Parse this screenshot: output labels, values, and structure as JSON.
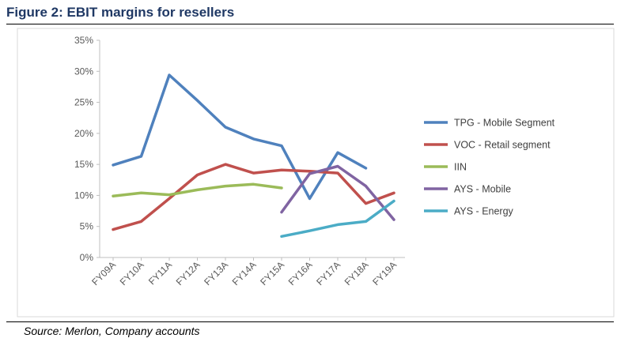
{
  "header": {
    "title": "Figure 2: EBIT margins for resellers"
  },
  "footer": {
    "source": "Source: Merlon, Company accounts"
  },
  "chart_data": {
    "type": "line",
    "title": "",
    "xlabel": "",
    "ylabel": "",
    "categories": [
      "FY09A",
      "FY10A",
      "FY11A",
      "FY12A",
      "FY13A",
      "FY14A",
      "FY15A",
      "FY16A",
      "FY17A",
      "FY18A",
      "FY19A"
    ],
    "ylim": [
      0,
      35
    ],
    "yticks": [
      "0%",
      "5%",
      "10%",
      "15%",
      "20%",
      "25%",
      "30%",
      "35%"
    ],
    "grid": false,
    "legend_position": "right",
    "series": [
      {
        "name": "TPG - Mobile Segment",
        "color": "#4f81bd",
        "values": [
          14.9,
          16.3,
          29.4,
          25.3,
          21.0,
          19.1,
          18.0,
          9.5,
          16.9,
          14.4,
          null
        ]
      },
      {
        "name": "VOC - Retail segment",
        "color": "#c0504d",
        "values": [
          4.5,
          5.8,
          9.5,
          13.3,
          15.0,
          13.6,
          14.1,
          13.9,
          13.6,
          8.7,
          10.4
        ]
      },
      {
        "name": "IIN",
        "color": "#9bbb59",
        "values": [
          9.9,
          10.4,
          10.1,
          10.9,
          11.5,
          11.8,
          11.2,
          null,
          null,
          null,
          null
        ]
      },
      {
        "name": "AYS - Mobile",
        "color": "#8064a2",
        "values": [
          null,
          null,
          null,
          null,
          null,
          null,
          7.3,
          13.5,
          14.7,
          11.5,
          6.1
        ]
      },
      {
        "name": "AYS - Energy",
        "color": "#4bacc6",
        "values": [
          null,
          null,
          null,
          null,
          null,
          null,
          3.4,
          4.3,
          5.3,
          5.8,
          9.1
        ]
      }
    ]
  }
}
